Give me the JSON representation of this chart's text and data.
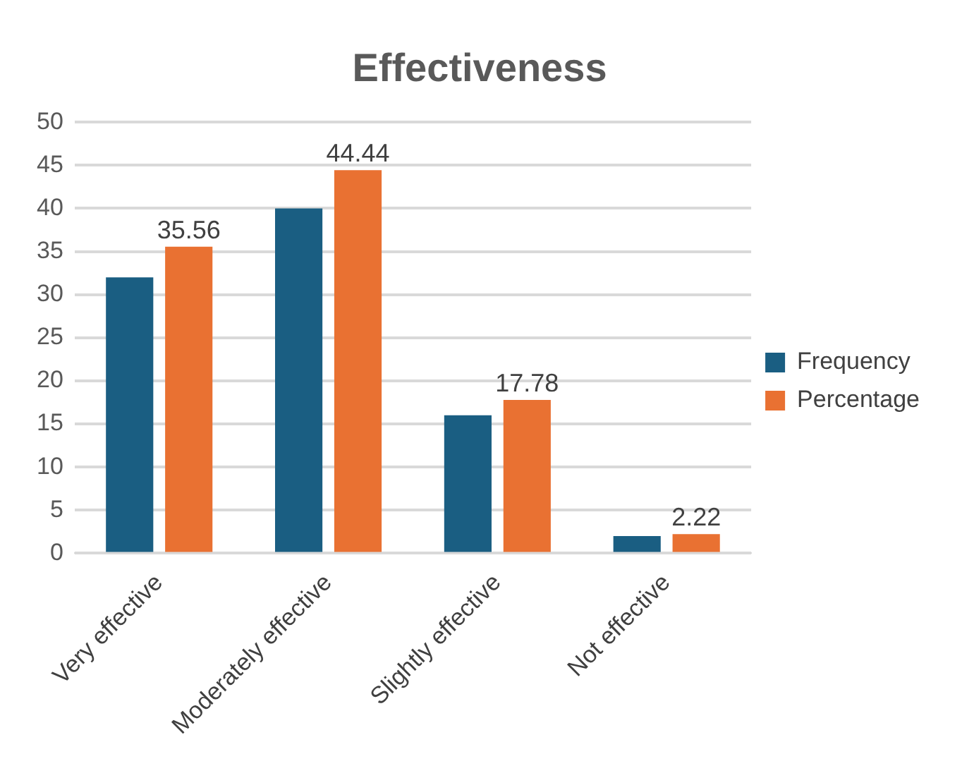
{
  "chart_data": {
    "type": "bar",
    "title": "Effectiveness",
    "categories": [
      "Very effective",
      "Moderately effective",
      "Slightly effective",
      "Not effective"
    ],
    "series": [
      {
        "name": "Frequency",
        "color": "#1a5e82",
        "values": [
          32,
          40,
          16,
          2
        ]
      },
      {
        "name": "Percentage",
        "color": "#e97132",
        "values": [
          35.56,
          44.44,
          17.78,
          2.22
        ],
        "value_labels": [
          "35.56",
          "44.44",
          "17.78",
          "2.22"
        ]
      }
    ],
    "ylim": [
      0,
      50
    ],
    "yticks": [
      0,
      5,
      10,
      15,
      20,
      25,
      30,
      35,
      40,
      45,
      50
    ],
    "grid": "y",
    "legend": "right"
  }
}
